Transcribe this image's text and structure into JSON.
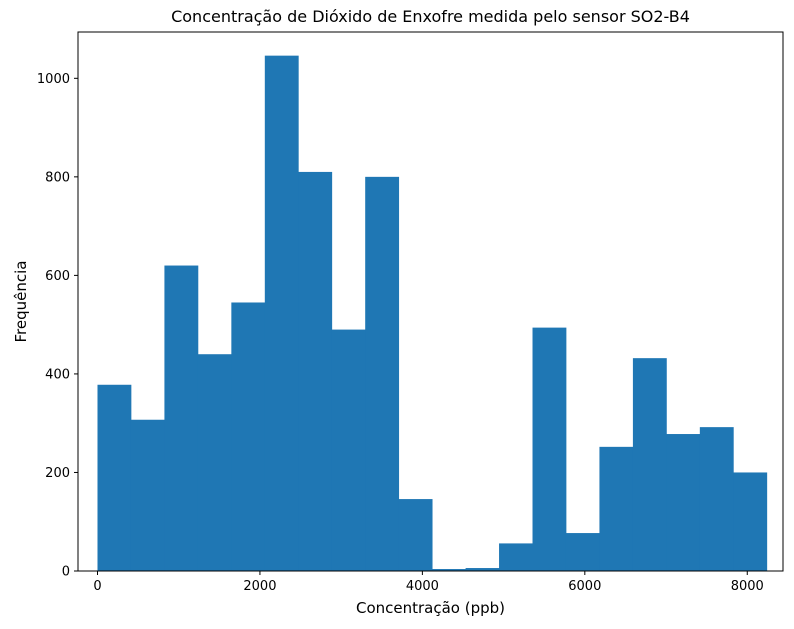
{
  "chart_data": {
    "type": "bar",
    "title": "Concentração de Dióxido de Enxofre medida pelo sensor SO2-B4",
    "xlabel": "Concentração (ppb)",
    "ylabel": "Frequência",
    "xlim": [
      -240,
      8440
    ],
    "ylim": [
      0,
      1094
    ],
    "xticks": [
      0,
      2000,
      4000,
      6000,
      8000
    ],
    "yticks": [
      0,
      200,
      400,
      600,
      800,
      1000
    ],
    "bar_color": "#1f77b4",
    "bins": [
      {
        "start": 0,
        "end": 412,
        "value": 378
      },
      {
        "start": 412,
        "end": 824,
        "value": 307
      },
      {
        "start": 824,
        "end": 1236,
        "value": 620
      },
      {
        "start": 1236,
        "end": 1648,
        "value": 440
      },
      {
        "start": 1648,
        "end": 2060,
        "value": 545
      },
      {
        "start": 2060,
        "end": 2472,
        "value": 1046
      },
      {
        "start": 2472,
        "end": 2884,
        "value": 810
      },
      {
        "start": 2884,
        "end": 3296,
        "value": 490
      },
      {
        "start": 3296,
        "end": 3708,
        "value": 800
      },
      {
        "start": 3708,
        "end": 4120,
        "value": 146
      },
      {
        "start": 4120,
        "end": 4532,
        "value": 4
      },
      {
        "start": 4532,
        "end": 4944,
        "value": 6
      },
      {
        "start": 4944,
        "end": 5356,
        "value": 56
      },
      {
        "start": 5356,
        "end": 5768,
        "value": 494
      },
      {
        "start": 5768,
        "end": 6180,
        "value": 77
      },
      {
        "start": 6180,
        "end": 6592,
        "value": 252
      },
      {
        "start": 6592,
        "end": 7004,
        "value": 432
      },
      {
        "start": 7004,
        "end": 7416,
        "value": 278
      },
      {
        "start": 7416,
        "end": 7828,
        "value": 292
      },
      {
        "start": 7828,
        "end": 8240,
        "value": 200
      }
    ]
  }
}
